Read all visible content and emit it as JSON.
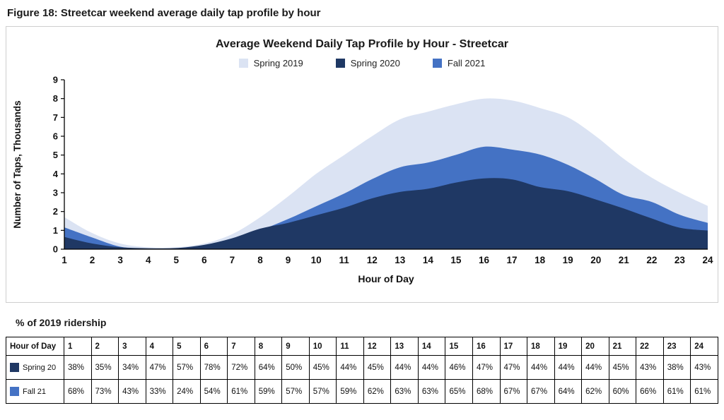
{
  "figure_title": "Figure 18: Streetcar weekend average daily tap profile by hour",
  "chart_data": {
    "type": "area",
    "title": "Average Weekend Daily Tap Profile by Hour - Streetcar",
    "xlabel": "Hour of Day",
    "ylabel": "Number of Taps, Thousands",
    "x": [
      1,
      2,
      3,
      4,
      5,
      6,
      7,
      8,
      9,
      10,
      11,
      12,
      13,
      14,
      15,
      16,
      17,
      18,
      19,
      20,
      21,
      22,
      23,
      24
    ],
    "ylim": [
      0,
      9
    ],
    "yticks": [
      0,
      1,
      2,
      3,
      4,
      5,
      6,
      7,
      8,
      9
    ],
    "grid": false,
    "legend_position": "top",
    "series": [
      {
        "name": "Spring 2019",
        "color": "#dbe3f3",
        "values": [
          1.7,
          0.85,
          0.3,
          0.1,
          0.1,
          0.3,
          0.8,
          1.7,
          2.8,
          4.0,
          5.0,
          6.0,
          6.9,
          7.3,
          7.7,
          8.0,
          7.9,
          7.5,
          7.0,
          6.0,
          4.8,
          3.8,
          3.0,
          2.3
        ]
      },
      {
        "name": "Spring 2020",
        "color": "#1f3864",
        "values": [
          0.65,
          0.3,
          0.1,
          0.05,
          0.06,
          0.23,
          0.58,
          1.09,
          1.4,
          1.8,
          2.2,
          2.7,
          3.04,
          3.21,
          3.54,
          3.76,
          3.71,
          3.3,
          3.08,
          2.64,
          2.16,
          1.63,
          1.14,
          0.99
        ]
      },
      {
        "name": "Fall 2021",
        "color": "#4472c4",
        "values": [
          1.16,
          0.62,
          0.13,
          0.03,
          0.02,
          0.16,
          0.49,
          1.0,
          1.6,
          2.28,
          2.95,
          3.72,
          4.35,
          4.6,
          5.01,
          5.44,
          5.29,
          5.03,
          4.48,
          3.72,
          2.88,
          2.51,
          1.83,
          1.4
        ]
      }
    ]
  },
  "table_section": {
    "heading": "% of 2019 ridership",
    "header": [
      "Hour of Day",
      "1",
      "2",
      "3",
      "4",
      "5",
      "6",
      "7",
      "8",
      "9",
      "10",
      "11",
      "12",
      "13",
      "14",
      "15",
      "16",
      "17",
      "18",
      "19",
      "20",
      "21",
      "22",
      "23",
      "24"
    ],
    "rows": [
      {
        "label": "Spring 20",
        "color": "#1f3864",
        "values": [
          "38%",
          "35%",
          "34%",
          "47%",
          "57%",
          "78%",
          "72%",
          "64%",
          "50%",
          "45%",
          "44%",
          "45%",
          "44%",
          "44%",
          "46%",
          "47%",
          "47%",
          "44%",
          "44%",
          "44%",
          "45%",
          "43%",
          "38%",
          "43%"
        ]
      },
      {
        "label": "Fall 21",
        "color": "#4472c4",
        "values": [
          "68%",
          "73%",
          "43%",
          "33%",
          "24%",
          "54%",
          "61%",
          "59%",
          "57%",
          "57%",
          "59%",
          "62%",
          "63%",
          "63%",
          "65%",
          "68%",
          "67%",
          "67%",
          "64%",
          "62%",
          "60%",
          "66%",
          "61%",
          "61%"
        ]
      }
    ]
  }
}
